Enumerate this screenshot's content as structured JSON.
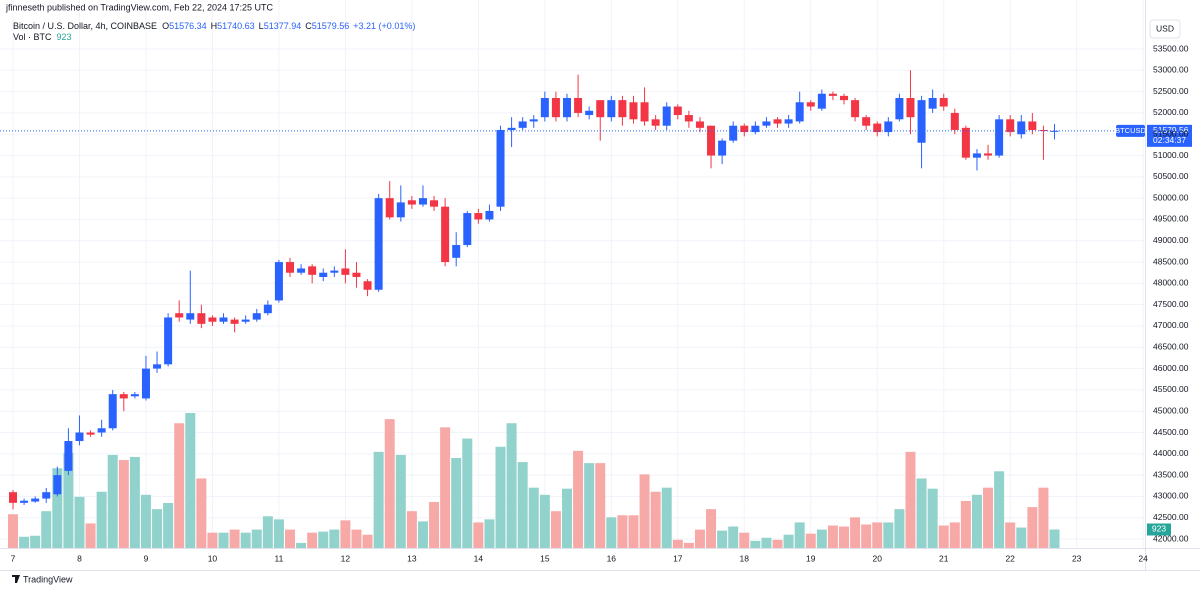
{
  "header": {
    "publisher": "jfinneseth published on TradingView.com, Feb 22, 2024 17:25 UTC",
    "footer": "TradingView"
  },
  "legend": {
    "symbol": "Bitcoin / U.S. Dollar, 4h, COINBASE",
    "ohlc": [
      {
        "label": "O",
        "value": 51576.34
      },
      {
        "label": "H",
        "value": 51740.63
      },
      {
        "label": "L",
        "value": 51377.94
      },
      {
        "label": "C",
        "value": 51579.56
      }
    ],
    "change": "+3.21 (+0.01%)",
    "volume_name": "Vol · BTC",
    "volume_value": 923
  },
  "price_tag": {
    "symbol": "BTCUSD",
    "price": 51579.56,
    "countdown": "02:34:37"
  },
  "chart_data": {
    "type": "candlestick",
    "currency": "USD",
    "up_color": "#2962ff",
    "down_color": "#f23645",
    "volume_up_color": "#92d2cc",
    "volume_down_color": "#f7a9a7",
    "grid": true,
    "open": [
      43100,
      42850,
      42880,
      42950,
      43050,
      43600,
      44300,
      44500,
      44500,
      44600,
      45400,
      45350,
      45300,
      46000,
      46100,
      47300,
      47150,
      47300,
      47200,
      47100,
      47150,
      47100,
      47150,
      47300,
      47600,
      48500,
      48250,
      48400,
      48150,
      48250,
      48350,
      48250,
      48050,
      47850,
      50000,
      49550,
      49950,
      49850,
      49950,
      49800,
      48600,
      48900,
      49650,
      49500,
      49800,
      51600,
      51650,
      51800,
      51900,
      52350,
      51900,
      52350,
      51950,
      52300,
      51900,
      52300,
      52250,
      52250,
      51850,
      51700,
      52150,
      51950,
      51800,
      51700,
      51000,
      51350,
      51700,
      51550,
      51700,
      51850,
      51750,
      51800,
      52250,
      52100,
      52450,
      52400,
      52300,
      51900,
      51750,
      51550,
      51850,
      52350,
      51300,
      52100,
      52350,
      52000,
      51650,
      50950,
      51050,
      51000,
      51850,
      51500,
      51800,
      51600,
      51576.34
    ],
    "high": [
      43150,
      42950,
      43000,
      43200,
      43700,
      44600,
      44900,
      44550,
      44800,
      45500,
      45450,
      45450,
      46300,
      46400,
      47300,
      47600,
      48300,
      47500,
      47250,
      47300,
      47200,
      47250,
      47400,
      47600,
      48550,
      48600,
      48450,
      48450,
      48350,
      48400,
      48800,
      48500,
      48100,
      50100,
      50400,
      50300,
      50050,
      50300,
      50050,
      50000,
      49200,
      49700,
      49750,
      49850,
      51700,
      51900,
      51900,
      51950,
      52500,
      52500,
      52450,
      52900,
      52150,
      52300,
      52400,
      52400,
      52400,
      52600,
      51950,
      52250,
      52200,
      52050,
      51900,
      51700,
      51400,
      51800,
      51750,
      51800,
      51900,
      51900,
      51950,
      52500,
      52300,
      52550,
      52500,
      52450,
      52350,
      51950,
      51800,
      51900,
      52450,
      53000,
      52400,
      52550,
      52450,
      52100,
      51700,
      51150,
      51250,
      51950,
      51950,
      51950,
      52000,
      51700,
      51740.63
    ],
    "low": [
      42700,
      42800,
      42850,
      42850,
      43000,
      43500,
      44200,
      44400,
      44400,
      44550,
      45000,
      45300,
      45250,
      45900,
      46050,
      47100,
      47050,
      46950,
      47000,
      47050,
      46850,
      47050,
      47100,
      47250,
      47550,
      48150,
      48200,
      48000,
      48050,
      48150,
      48000,
      47900,
      47700,
      47800,
      49500,
      49450,
      49750,
      49800,
      49700,
      48400,
      48400,
      48850,
      49400,
      49450,
      49700,
      51200,
      51600,
      51650,
      51800,
      51800,
      51800,
      51900,
      51850,
      51350,
      51800,
      51700,
      51750,
      51700,
      51600,
      51600,
      51850,
      51650,
      51550,
      50700,
      50800,
      51300,
      51450,
      51500,
      51650,
      51650,
      51650,
      51750,
      52050,
      52050,
      52300,
      52200,
      51800,
      51600,
      51450,
      51450,
      51800,
      51500,
      50700,
      52000,
      52050,
      51500,
      50900,
      50650,
      50900,
      50950,
      51450,
      51400,
      51500,
      50900,
      51377.94
    ],
    "close": [
      42850,
      42900,
      42950,
      43100,
      43500,
      44300,
      44500,
      44450,
      44600,
      45400,
      45300,
      45400,
      46000,
      46100,
      47200,
      47200,
      47300,
      47050,
      47100,
      47200,
      47050,
      47150,
      47300,
      47500,
      48500,
      48250,
      48350,
      48200,
      48250,
      48300,
      48200,
      48150,
      47850,
      50000,
      49550,
      49900,
      49850,
      50000,
      49800,
      48500,
      48900,
      49650,
      49500,
      49700,
      51600,
      51650,
      51800,
      51850,
      52350,
      51900,
      52350,
      52000,
      52050,
      51900,
      52300,
      51900,
      51850,
      51800,
      51700,
      52150,
      51950,
      51800,
      51650,
      51000,
      51350,
      51700,
      51550,
      51700,
      51800,
      51750,
      51850,
      52250,
      52150,
      52450,
      52400,
      52300,
      51900,
      51700,
      51550,
      51800,
      52350,
      51900,
      52300,
      52350,
      52150,
      51600,
      50950,
      51050,
      51000,
      51850,
      51550,
      51800,
      51600,
      51580,
      51579.56
    ],
    "volume": [
      1683,
      561,
      612,
      1836,
      3978,
      4743,
      2550,
      1224,
      2805,
      4641,
      4386,
      4539,
      2652,
      1938,
      2244,
      6222,
      6732,
      3468,
      765,
      765,
      918,
      765,
      918,
      1581,
      1428,
      918,
      255,
      765,
      816,
      918,
      1377,
      918,
      663,
      4794,
      6426,
      4641,
      1836,
      1326,
      2295,
      6018,
      4488,
      5457,
      1275,
      1428,
      5049,
      6222,
      4284,
      3009,
      2652,
      1836,
      2958,
      4845,
      4233,
      4233,
      1530,
      1632,
      1632,
      3672,
      2805,
      3009,
      408,
      255,
      918,
      1938,
      867,
      1071,
      765,
      357,
      510,
      408,
      663,
      1275,
      714,
      918,
      1122,
      1071,
      1530,
      1173,
      1275,
      1275,
      1938,
      4794,
      3468,
      2958,
      1122,
      1275,
      2346,
      2652,
      3009,
      3825,
      1275,
      1020,
      2040,
      3009,
      923
    ],
    "ylim": [
      41790,
      54650
    ],
    "yticks": [
      {
        "value": 42000,
        "label": "42000.00"
      },
      {
        "value": 42500,
        "label": "42500.00"
      },
      {
        "value": 43000,
        "label": "43000.00"
      },
      {
        "value": 43500,
        "label": "43500.00"
      },
      {
        "value": 44000,
        "label": "44000.00"
      },
      {
        "value": 44500,
        "label": "44500.00"
      },
      {
        "value": 45000,
        "label": "45000.00"
      },
      {
        "value": 45500,
        "label": "45500.00"
      },
      {
        "value": 46000,
        "label": "46000.00"
      },
      {
        "value": 46500,
        "label": "46500.00"
      },
      {
        "value": 47000,
        "label": "47000.00"
      },
      {
        "value": 47500,
        "label": "47500.00"
      },
      {
        "value": 48000,
        "label": "48000.00"
      },
      {
        "value": 48500,
        "label": "48500.00"
      },
      {
        "value": 49000,
        "label": "49000.00"
      },
      {
        "value": 49500,
        "label": "49500.00"
      },
      {
        "value": 50000,
        "label": "50000.00"
      },
      {
        "value": 50500,
        "label": "50500.00"
      },
      {
        "value": 51000,
        "label": "51000.00"
      },
      {
        "value": 51500,
        "label": "51500.00"
      },
      {
        "value": 52000,
        "label": "52000.00"
      },
      {
        "value": 52500,
        "label": "52500.00"
      },
      {
        "value": 53000,
        "label": "53000.00"
      },
      {
        "value": 53500,
        "label": "53500.00"
      }
    ],
    "xticks": [
      7,
      8,
      9,
      10,
      11,
      12,
      13,
      14,
      15,
      16,
      17,
      18,
      19,
      20,
      21,
      22,
      23,
      24
    ]
  }
}
